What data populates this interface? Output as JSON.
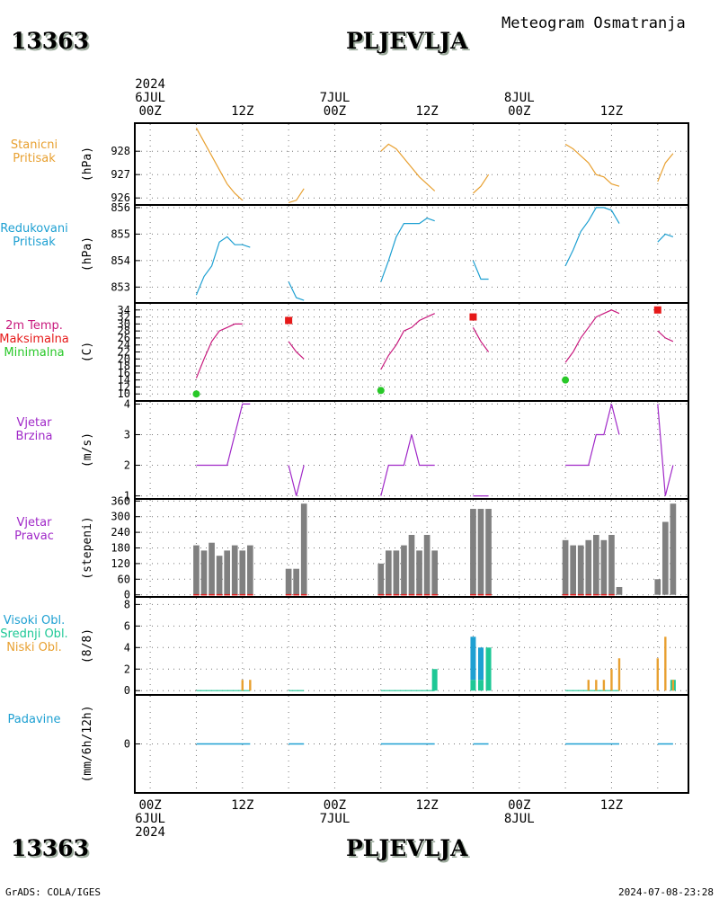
{
  "header": {
    "station_id": "13363",
    "station_name": "PLJEVLJA",
    "subtitle": "Meteogram Osmatranja"
  },
  "footer": {
    "station_id": "13363",
    "station_name": "PLJEVLJA",
    "credit": "GrADS: COLA/IGES",
    "timestamp": "2024-07-08-23:28"
  },
  "colors": {
    "pressure": "#e8a030",
    "reduced": "#1ea0d2",
    "temp": "#c8197d",
    "max": "#e61919",
    "min": "#28c828",
    "wind": "#a028c8",
    "bars": "#808080",
    "high_cloud": "#1ea0d2",
    "mid_cloud": "#1ec896",
    "low_cloud": "#e8a030",
    "precip": "#1ea0d2"
  },
  "time_axis": {
    "top": [
      {
        "t": 0,
        "lines": [
          "2024",
          "6JUL",
          "00Z"
        ]
      },
      {
        "t": 12,
        "lines": [
          "12Z"
        ]
      },
      {
        "t": 24,
        "lines": [
          "7JUL",
          "00Z"
        ]
      },
      {
        "t": 36,
        "lines": [
          "12Z"
        ]
      },
      {
        "t": 48,
        "lines": [
          "8JUL",
          "00Z"
        ]
      },
      {
        "t": 60,
        "lines": [
          "12Z"
        ]
      }
    ],
    "bottom": [
      {
        "t": 0,
        "lines": [
          "00Z",
          "6JUL",
          "2024"
        ]
      },
      {
        "t": 12,
        "lines": [
          "12Z"
        ]
      },
      {
        "t": 24,
        "lines": [
          "00Z",
          "7JUL"
        ]
      },
      {
        "t": 36,
        "lines": [
          "12Z"
        ]
      },
      {
        "t": 48,
        "lines": [
          "00Z",
          "8JUL"
        ]
      },
      {
        "t": 60,
        "lines": [
          "12Z"
        ]
      }
    ]
  },
  "chart_data": [
    {
      "type": "line",
      "labels": [
        "Stanicni",
        "Pritisak"
      ],
      "ylabel": "(hPa)",
      "ylim": [
        925.7,
        929.2
      ],
      "yticks": [
        926,
        927,
        928
      ],
      "series": [
        {
          "segments": [
            [
              [
                6,
                929
              ],
              [
                8,
                927.8
              ],
              [
                10,
                926.6
              ],
              [
                11,
                926.2
              ],
              [
                12,
                925.9
              ]
            ],
            [
              [
                18,
                925.8
              ],
              [
                19,
                925.9
              ],
              [
                20,
                926.4
              ]
            ],
            [
              [
                30,
                928
              ],
              [
                31,
                928.3
              ],
              [
                32,
                928.1
              ],
              [
                34,
                927.3
              ],
              [
                35,
                926.9
              ],
              [
                36,
                926.6
              ],
              [
                37,
                926.3
              ]
            ],
            [
              [
                42,
                926.2
              ],
              [
                43,
                926.5
              ],
              [
                44,
                927
              ]
            ],
            [
              [
                54,
                928.3
              ],
              [
                55,
                928.1
              ],
              [
                57,
                927.5
              ],
              [
                58,
                927
              ],
              [
                59,
                926.9
              ],
              [
                60,
                926.6
              ],
              [
                61,
                926.5
              ]
            ],
            [
              [
                66,
                926.7
              ],
              [
                67,
                927.5
              ],
              [
                68,
                927.9
              ]
            ]
          ]
        }
      ]
    },
    {
      "type": "line",
      "labels": [
        "Redukovani",
        "Pritisak"
      ],
      "ylabel": "(hPa)",
      "ylim": [
        852.4,
        856.1
      ],
      "yticks": [
        853,
        854,
        855,
        856
      ],
      "series": [
        {
          "segments": [
            [
              [
                6,
                852.7
              ],
              [
                7,
                853.4
              ],
              [
                8,
                853.8
              ],
              [
                9,
                854.7
              ],
              [
                10,
                854.9
              ],
              [
                11,
                854.6
              ],
              [
                12,
                854.6
              ],
              [
                13,
                854.5
              ]
            ],
            [
              [
                18,
                853.2
              ],
              [
                19,
                852.6
              ],
              [
                20,
                852.5
              ]
            ],
            [
              [
                30,
                853.2
              ],
              [
                31,
                854
              ],
              [
                32,
                854.9
              ],
              [
                33,
                855.4
              ],
              [
                34,
                855.4
              ],
              [
                35,
                855.4
              ],
              [
                36,
                855.6
              ],
              [
                37,
                855.5
              ]
            ],
            [
              [
                42,
                854
              ],
              [
                43,
                853.3
              ],
              [
                44,
                853.3
              ]
            ],
            [
              [
                54,
                853.8
              ],
              [
                55,
                854.4
              ],
              [
                56,
                855.1
              ],
              [
                57,
                855.5
              ],
              [
                58,
                856
              ],
              [
                59,
                856
              ],
              [
                60,
                855.9
              ],
              [
                61,
                855.4
              ]
            ],
            [
              [
                66,
                854.7
              ],
              [
                67,
                855
              ],
              [
                68,
                854.9
              ]
            ]
          ]
        }
      ]
    },
    {
      "type": "line",
      "labels": [
        "2m Temp.",
        "Maksimalna",
        "Minimalna"
      ],
      "ylabel": "(C)",
      "ylim": [
        8,
        36
      ],
      "yticks": [
        10,
        12,
        14,
        16,
        18,
        20,
        22,
        24,
        26,
        28,
        30,
        32,
        34
      ],
      "series": [
        {
          "segments": [
            [
              [
                6,
                14.5
              ],
              [
                7,
                20
              ],
              [
                8,
                25
              ],
              [
                9,
                28
              ],
              [
                10,
                29
              ],
              [
                11,
                30
              ],
              [
                12,
                30
              ]
            ],
            [
              [
                18,
                25
              ],
              [
                19,
                22
              ],
              [
                20,
                20
              ]
            ],
            [
              [
                30,
                17
              ],
              [
                31,
                21
              ],
              [
                32,
                24
              ],
              [
                33,
                28
              ],
              [
                34,
                29
              ],
              [
                35,
                31
              ],
              [
                36,
                32
              ],
              [
                37,
                33
              ]
            ],
            [
              [
                42,
                29
              ],
              [
                43,
                25
              ],
              [
                44,
                22
              ]
            ],
            [
              [
                54,
                19
              ],
              [
                55,
                22
              ],
              [
                56,
                26
              ],
              [
                57,
                29
              ],
              [
                58,
                32
              ],
              [
                59,
                33
              ],
              [
                60,
                34
              ],
              [
                61,
                33
              ]
            ],
            [
              [
                66,
                28
              ],
              [
                67,
                26
              ],
              [
                68,
                25
              ]
            ]
          ]
        }
      ],
      "max_points": [
        [
          18,
          31
        ],
        [
          42,
          32
        ],
        [
          66,
          34
        ]
      ],
      "min_points": [
        [
          6,
          10
        ],
        [
          30,
          11
        ],
        [
          54,
          14
        ]
      ]
    },
    {
      "type": "line",
      "labels": [
        "Vjetar",
        "Brzina"
      ],
      "ylabel": "(m/s)",
      "ylim": [
        0.9,
        4.1
      ],
      "yticks": [
        1,
        2,
        3,
        4
      ],
      "series": [
        {
          "segments": [
            [
              [
                6,
                2
              ],
              [
                10,
                2
              ],
              [
                12,
                4
              ],
              [
                13,
                4
              ]
            ],
            [
              [
                18,
                2
              ],
              [
                19,
                1
              ],
              [
                20,
                2
              ]
            ],
            [
              [
                30,
                1
              ],
              [
                31,
                2
              ],
              [
                33,
                2
              ],
              [
                34,
                3
              ],
              [
                35,
                2
              ],
              [
                37,
                2
              ]
            ],
            [
              [
                42,
                1
              ],
              [
                44,
                1
              ]
            ],
            [
              [
                54,
                2
              ],
              [
                57,
                2
              ],
              [
                58,
                3
              ],
              [
                59,
                3
              ],
              [
                60,
                4
              ],
              [
                61,
                3
              ]
            ],
            [
              [
                66,
                4
              ],
              [
                67,
                1
              ],
              [
                68,
                2
              ]
            ]
          ]
        }
      ]
    },
    {
      "type": "bar",
      "labels": [
        "Vjetar",
        "Pravac"
      ],
      "ylabel": "(stepeni)",
      "ylim": [
        -8,
        368
      ],
      "yticks": [
        0,
        60,
        120,
        180,
        240,
        300,
        360
      ],
      "bars": [
        [
          6,
          190
        ],
        [
          7,
          170
        ],
        [
          8,
          200
        ],
        [
          9,
          150
        ],
        [
          10,
          170
        ],
        [
          11,
          190
        ],
        [
          12,
          170
        ],
        [
          13,
          190
        ],
        [
          18,
          100
        ],
        [
          19,
          100
        ],
        [
          20,
          350
        ],
        [
          30,
          120
        ],
        [
          31,
          170
        ],
        [
          32,
          170
        ],
        [
          33,
          190
        ],
        [
          34,
          230
        ],
        [
          35,
          170
        ],
        [
          36,
          230
        ],
        [
          37,
          170
        ],
        [
          42,
          330
        ],
        [
          43,
          330
        ],
        [
          44,
          330
        ],
        [
          54,
          210
        ],
        [
          55,
          190
        ],
        [
          56,
          190
        ],
        [
          57,
          210
        ],
        [
          58,
          230
        ],
        [
          59,
          210
        ],
        [
          60,
          230
        ],
        [
          61,
          30
        ],
        [
          66,
          60
        ],
        [
          67,
          280
        ],
        [
          68,
          350
        ]
      ],
      "markers": [
        [
          6,
          0
        ],
        [
          7,
          0
        ],
        [
          8,
          0
        ],
        [
          9,
          0
        ],
        [
          10,
          0
        ],
        [
          11,
          0
        ],
        [
          12,
          0
        ],
        [
          13,
          0
        ],
        [
          18,
          0
        ],
        [
          19,
          0
        ],
        [
          20,
          0
        ],
        [
          30,
          0
        ],
        [
          31,
          0
        ],
        [
          32,
          0
        ],
        [
          33,
          0
        ],
        [
          34,
          0
        ],
        [
          35,
          0
        ],
        [
          36,
          0
        ],
        [
          37,
          0
        ],
        [
          42,
          0
        ],
        [
          43,
          0
        ],
        [
          44,
          0
        ],
        [
          54,
          0
        ],
        [
          55,
          0
        ],
        [
          56,
          0
        ],
        [
          57,
          0
        ],
        [
          58,
          0
        ],
        [
          59,
          0
        ],
        [
          60,
          0
        ]
      ]
    },
    {
      "type": "bar",
      "labels": [
        "Visoki Obl.",
        "Srednji Obl.",
        "Niski Obl."
      ],
      "ylabel": "(8/8)",
      "ylim": [
        -0.4,
        8.7
      ],
      "yticks": [
        0,
        2,
        4,
        6,
        8
      ],
      "stacks": [
        {
          "t": 42,
          "mid": 1,
          "high": 4
        },
        {
          "t": 43,
          "mid": 1,
          "high": 3
        },
        {
          "t": 44,
          "mid": 4,
          "high": 0
        },
        {
          "t": 37,
          "mid": 2,
          "high": 0
        },
        {
          "t": 68,
          "mid": 1,
          "high": 0
        }
      ],
      "low": [
        [
          12,
          1
        ],
        [
          13,
          1
        ],
        [
          57,
          1
        ],
        [
          58,
          1
        ],
        [
          59,
          1
        ],
        [
          60,
          2
        ],
        [
          61,
          3
        ],
        [
          66,
          3
        ],
        [
          67,
          5
        ],
        [
          68,
          1
        ]
      ],
      "trace_spans": [
        [
          6,
          13
        ],
        [
          18,
          20
        ],
        [
          30,
          37
        ],
        [
          54,
          61
        ]
      ]
    },
    {
      "type": "bar",
      "labels": [
        "Padavine"
      ],
      "ylabel": "(mm/6h/12h)",
      "ylim": [
        -2,
        2
      ],
      "yticks": [
        0
      ],
      "trace_spans": [
        [
          6,
          13
        ],
        [
          18,
          20
        ],
        [
          30,
          37
        ],
        [
          42,
          44
        ],
        [
          54,
          61
        ],
        [
          66,
          68
        ]
      ]
    }
  ]
}
